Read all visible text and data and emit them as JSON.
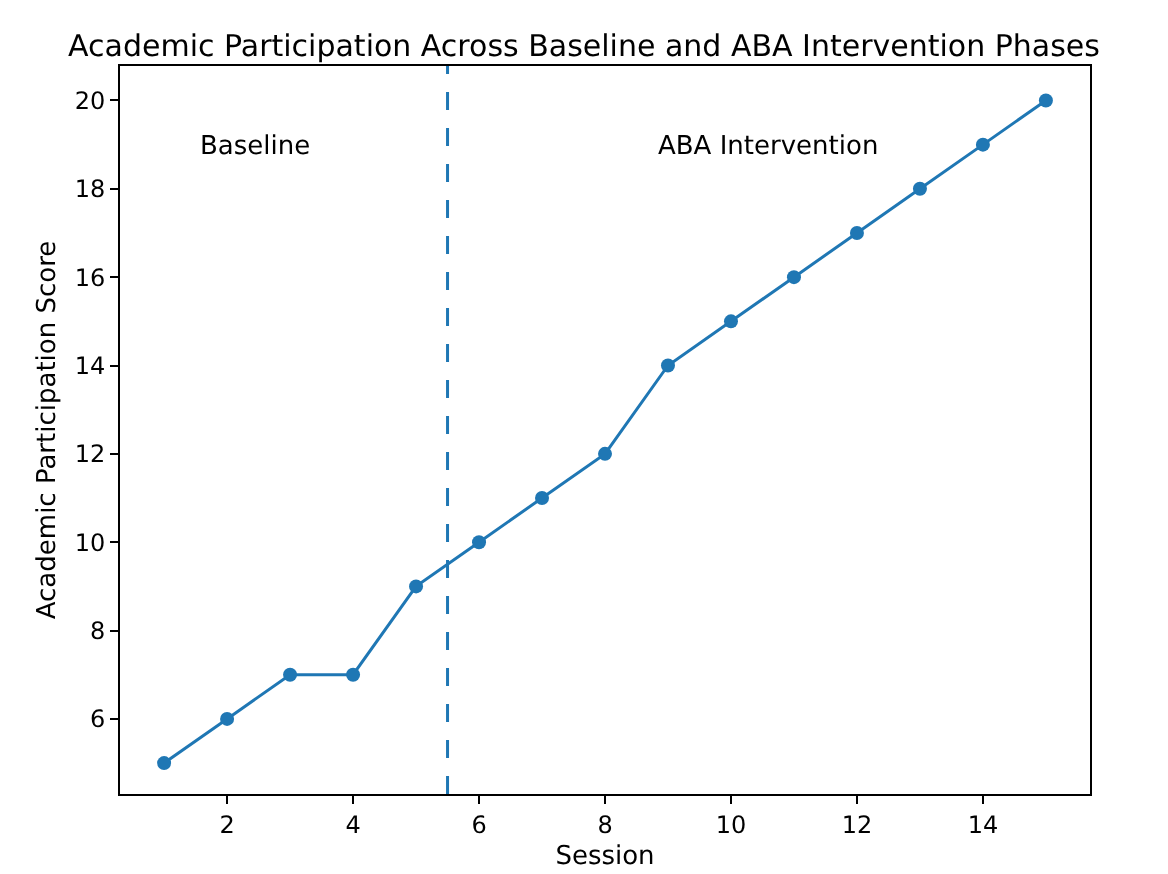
{
  "chart_data": {
    "type": "line",
    "title": "Academic Participation Across Baseline and ABA Intervention Phases",
    "xlabel": "Session",
    "ylabel": "Academic Participation Score",
    "x": [
      1,
      2,
      3,
      4,
      5,
      6,
      7,
      8,
      9,
      10,
      11,
      12,
      13,
      14,
      15
    ],
    "series": [
      {
        "color": "#1f77b4",
        "values": [
          5,
          6,
          7,
          7,
          9,
          10,
          11,
          12,
          14,
          15,
          16,
          17,
          18,
          19,
          20
        ]
      }
    ],
    "marker": "circle",
    "line_style": "solid",
    "xlim": [
      0.3,
      15.7
    ],
    "xticks": [
      2,
      4,
      6,
      8,
      10,
      12,
      14
    ],
    "ylim": [
      4.3,
      20.78
    ],
    "yticks": [
      6,
      8,
      10,
      12,
      14,
      16,
      18,
      20
    ],
    "ref_lines": [
      {
        "axis": "x",
        "value": 5.5,
        "color": "#1f77b4",
        "line_style": "dashed"
      }
    ],
    "annotations": [
      "Baseline",
      "ABA Intervention"
    ]
  }
}
